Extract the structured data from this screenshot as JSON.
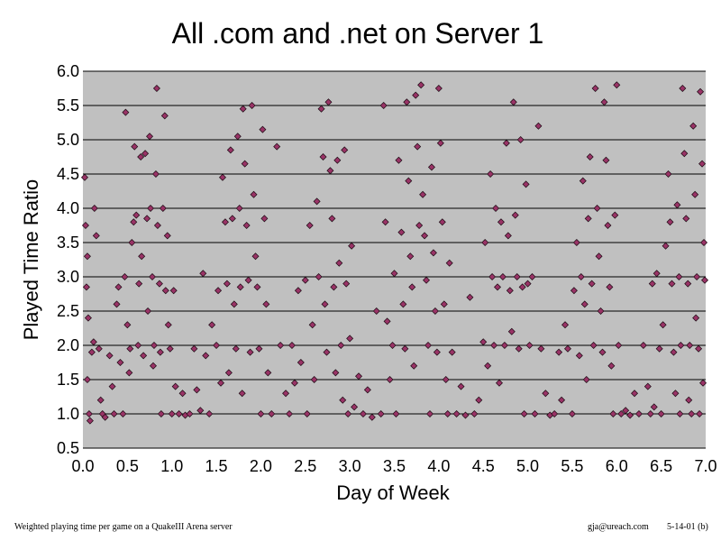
{
  "colors": {
    "plot_background": "#c0c0c0",
    "gridline": "#000000",
    "marker_fill": "#993366",
    "marker_stroke": "#1a0a12"
  },
  "footer": {
    "left": "Weighted playing time per game on a QuakeIII Arena server",
    "email": "gja@ureach.com",
    "date": "5-14-01 (b)"
  },
  "chart_data": {
    "type": "scatter",
    "title": "All .com and .net on Server 1",
    "xlabel": "Day of Week",
    "ylabel": "Played Time Ratio",
    "xlim": [
      0.0,
      7.0
    ],
    "ylim": [
      0.5,
      6.0
    ],
    "x_ticks": [
      "0.0",
      "0.5",
      "1.0",
      "1.5",
      "2.0",
      "2.5",
      "3.0",
      "3.5",
      "4.0",
      "4.5",
      "5.0",
      "5.5",
      "6.0",
      "6.5",
      "7.0"
    ],
    "y_ticks": [
      "0.5",
      "1.0",
      "1.5",
      "2.0",
      "2.5",
      "3.0",
      "3.5",
      "4.0",
      "4.5",
      "5.0",
      "5.5",
      "6.0"
    ],
    "grid": "horizontal",
    "marker": "diamond",
    "points": [
      [
        0.02,
        4.45
      ],
      [
        0.03,
        3.75
      ],
      [
        0.05,
        3.3
      ],
      [
        0.04,
        2.85
      ],
      [
        0.06,
        2.4
      ],
      [
        0.05,
        1.5
      ],
      [
        0.07,
        1.0
      ],
      [
        0.08,
        0.9
      ],
      [
        0.1,
        1.9
      ],
      [
        0.12,
        2.05
      ],
      [
        0.13,
        4.0
      ],
      [
        0.15,
        3.6
      ],
      [
        0.18,
        1.95
      ],
      [
        0.2,
        1.2
      ],
      [
        0.22,
        1.0
      ],
      [
        0.25,
        0.95
      ],
      [
        0.3,
        1.85
      ],
      [
        0.33,
        1.4
      ],
      [
        0.35,
        1.0
      ],
      [
        0.38,
        2.6
      ],
      [
        0.4,
        2.85
      ],
      [
        0.42,
        1.75
      ],
      [
        0.45,
        1.0
      ],
      [
        0.47,
        3.0
      ],
      [
        0.48,
        5.4
      ],
      [
        0.5,
        2.3
      ],
      [
        0.52,
        1.6
      ],
      [
        0.53,
        1.95
      ],
      [
        0.55,
        3.5
      ],
      [
        0.57,
        3.8
      ],
      [
        0.58,
        4.9
      ],
      [
        0.6,
        3.9
      ],
      [
        0.62,
        2.0
      ],
      [
        0.63,
        2.9
      ],
      [
        0.65,
        4.75
      ],
      [
        0.66,
        3.3
      ],
      [
        0.68,
        1.85
      ],
      [
        0.7,
        4.8
      ],
      [
        0.72,
        3.85
      ],
      [
        0.73,
        2.5
      ],
      [
        0.75,
        5.05
      ],
      [
        0.76,
        4.0
      ],
      [
        0.78,
        3.0
      ],
      [
        0.79,
        1.7
      ],
      [
        0.8,
        2.0
      ],
      [
        0.82,
        4.5
      ],
      [
        0.83,
        5.75
      ],
      [
        0.84,
        3.75
      ],
      [
        0.86,
        2.9
      ],
      [
        0.87,
        1.9
      ],
      [
        0.88,
        1.0
      ],
      [
        0.9,
        4.0
      ],
      [
        0.92,
        5.35
      ],
      [
        0.93,
        2.8
      ],
      [
        0.95,
        3.6
      ],
      [
        0.96,
        2.3
      ],
      [
        0.98,
        1.95
      ],
      [
        1.0,
        1.0
      ],
      [
        1.02,
        2.8
      ],
      [
        1.04,
        1.4
      ],
      [
        1.08,
        1.0
      ],
      [
        1.12,
        1.3
      ],
      [
        1.15,
        0.98
      ],
      [
        1.2,
        1.0
      ],
      [
        1.25,
        1.95
      ],
      [
        1.28,
        1.35
      ],
      [
        1.32,
        1.05
      ],
      [
        1.35,
        3.05
      ],
      [
        1.38,
        1.85
      ],
      [
        1.42,
        1.0
      ],
      [
        1.45,
        2.3
      ],
      [
        1.5,
        2.0
      ],
      [
        1.52,
        2.8
      ],
      [
        1.55,
        1.45
      ],
      [
        1.57,
        4.45
      ],
      [
        1.6,
        3.8
      ],
      [
        1.62,
        2.9
      ],
      [
        1.64,
        1.6
      ],
      [
        1.66,
        4.85
      ],
      [
        1.68,
        3.85
      ],
      [
        1.7,
        2.6
      ],
      [
        1.72,
        1.95
      ],
      [
        1.74,
        5.05
      ],
      [
        1.76,
        4.0
      ],
      [
        1.77,
        2.85
      ],
      [
        1.79,
        1.3
      ],
      [
        1.8,
        5.45
      ],
      [
        1.82,
        4.65
      ],
      [
        1.84,
        3.75
      ],
      [
        1.86,
        2.95
      ],
      [
        1.88,
        1.9
      ],
      [
        1.9,
        5.5
      ],
      [
        1.92,
        4.2
      ],
      [
        1.94,
        3.3
      ],
      [
        1.96,
        2.85
      ],
      [
        1.98,
        1.95
      ],
      [
        2.0,
        1.0
      ],
      [
        2.02,
        5.15
      ],
      [
        2.04,
        3.85
      ],
      [
        2.06,
        2.6
      ],
      [
        2.08,
        1.6
      ],
      [
        2.12,
        1.0
      ],
      [
        2.18,
        4.9
      ],
      [
        2.22,
        2.0
      ],
      [
        2.28,
        1.3
      ],
      [
        2.32,
        1.0
      ],
      [
        2.35,
        2.0
      ],
      [
        2.38,
        1.45
      ],
      [
        2.42,
        2.8
      ],
      [
        2.45,
        1.75
      ],
      [
        2.5,
        2.95
      ],
      [
        2.52,
        1.0
      ],
      [
        2.55,
        3.75
      ],
      [
        2.58,
        2.3
      ],
      [
        2.6,
        1.5
      ],
      [
        2.63,
        4.1
      ],
      [
        2.65,
        3.0
      ],
      [
        2.68,
        5.45
      ],
      [
        2.7,
        4.75
      ],
      [
        2.72,
        2.6
      ],
      [
        2.74,
        1.9
      ],
      [
        2.76,
        5.55
      ],
      [
        2.78,
        4.55
      ],
      [
        2.8,
        3.85
      ],
      [
        2.82,
        2.85
      ],
      [
        2.84,
        1.6
      ],
      [
        2.86,
        4.7
      ],
      [
        2.88,
        3.2
      ],
      [
        2.9,
        2.0
      ],
      [
        2.92,
        1.2
      ],
      [
        2.94,
        4.85
      ],
      [
        2.96,
        2.9
      ],
      [
        2.98,
        1.0
      ],
      [
        3.0,
        2.1
      ],
      [
        3.02,
        3.45
      ],
      [
        3.05,
        1.1
      ],
      [
        3.1,
        1.55
      ],
      [
        3.15,
        1.0
      ],
      [
        3.2,
        1.35
      ],
      [
        3.25,
        0.95
      ],
      [
        3.3,
        2.5
      ],
      [
        3.35,
        1.0
      ],
      [
        3.38,
        5.5
      ],
      [
        3.4,
        3.8
      ],
      [
        3.42,
        2.35
      ],
      [
        3.45,
        1.5
      ],
      [
        3.48,
        2.0
      ],
      [
        3.5,
        3.05
      ],
      [
        3.52,
        1.0
      ],
      [
        3.55,
        4.7
      ],
      [
        3.58,
        3.65
      ],
      [
        3.6,
        2.6
      ],
      [
        3.62,
        1.95
      ],
      [
        3.64,
        5.55
      ],
      [
        3.66,
        4.4
      ],
      [
        3.68,
        3.3
      ],
      [
        3.7,
        2.85
      ],
      [
        3.72,
        1.7
      ],
      [
        3.74,
        5.65
      ],
      [
        3.76,
        4.9
      ],
      [
        3.78,
        3.75
      ],
      [
        3.8,
        5.8
      ],
      [
        3.82,
        4.2
      ],
      [
        3.84,
        3.6
      ],
      [
        3.86,
        2.95
      ],
      [
        3.88,
        2.0
      ],
      [
        3.9,
        1.0
      ],
      [
        3.92,
        4.6
      ],
      [
        3.94,
        3.35
      ],
      [
        3.96,
        2.5
      ],
      [
        3.98,
        1.9
      ],
      [
        4.0,
        5.75
      ],
      [
        4.02,
        4.95
      ],
      [
        4.04,
        3.8
      ],
      [
        4.06,
        2.6
      ],
      [
        4.08,
        1.5
      ],
      [
        4.1,
        1.0
      ],
      [
        4.12,
        3.2
      ],
      [
        4.15,
        1.9
      ],
      [
        4.2,
        1.0
      ],
      [
        4.25,
        1.4
      ],
      [
        4.3,
        0.98
      ],
      [
        4.35,
        2.7
      ],
      [
        4.4,
        1.0
      ],
      [
        4.45,
        1.2
      ],
      [
        4.5,
        2.05
      ],
      [
        4.52,
        3.5
      ],
      [
        4.55,
        1.7
      ],
      [
        4.58,
        4.5
      ],
      [
        4.6,
        3.0
      ],
      [
        4.62,
        2.0
      ],
      [
        4.64,
        4.0
      ],
      [
        4.66,
        2.85
      ],
      [
        4.68,
        1.45
      ],
      [
        4.7,
        3.8
      ],
      [
        4.72,
        3.0
      ],
      [
        4.74,
        2.0
      ],
      [
        4.76,
        4.95
      ],
      [
        4.78,
        3.6
      ],
      [
        4.8,
        2.8
      ],
      [
        4.82,
        2.2
      ],
      [
        4.84,
        5.55
      ],
      [
        4.86,
        3.9
      ],
      [
        4.88,
        3.0
      ],
      [
        4.9,
        1.95
      ],
      [
        4.92,
        5.0
      ],
      [
        4.94,
        2.85
      ],
      [
        4.96,
        1.0
      ],
      [
        4.98,
        4.35
      ],
      [
        5.0,
        2.9
      ],
      [
        5.02,
        2.0
      ],
      [
        5.05,
        3.0
      ],
      [
        5.08,
        1.0
      ],
      [
        5.12,
        5.2
      ],
      [
        5.15,
        1.95
      ],
      [
        5.2,
        1.3
      ],
      [
        5.25,
        0.98
      ],
      [
        5.3,
        1.0
      ],
      [
        5.35,
        1.9
      ],
      [
        5.38,
        1.2
      ],
      [
        5.42,
        2.3
      ],
      [
        5.45,
        1.95
      ],
      [
        5.5,
        1.0
      ],
      [
        5.52,
        2.8
      ],
      [
        5.55,
        3.5
      ],
      [
        5.58,
        1.85
      ],
      [
        5.6,
        3.0
      ],
      [
        5.62,
        4.4
      ],
      [
        5.64,
        2.6
      ],
      [
        5.66,
        1.5
      ],
      [
        5.68,
        3.85
      ],
      [
        5.7,
        4.75
      ],
      [
        5.72,
        2.9
      ],
      [
        5.74,
        2.0
      ],
      [
        5.76,
        5.75
      ],
      [
        5.78,
        4.0
      ],
      [
        5.8,
        3.3
      ],
      [
        5.82,
        2.5
      ],
      [
        5.84,
        1.9
      ],
      [
        5.86,
        5.55
      ],
      [
        5.88,
        4.7
      ],
      [
        5.9,
        3.75
      ],
      [
        5.92,
        2.85
      ],
      [
        5.94,
        1.7
      ],
      [
        5.96,
        1.0
      ],
      [
        5.98,
        3.9
      ],
      [
        6.0,
        5.8
      ],
      [
        6.02,
        2.0
      ],
      [
        6.05,
        1.0
      ],
      [
        6.1,
        1.05
      ],
      [
        6.15,
        0.98
      ],
      [
        6.2,
        1.3
      ],
      [
        6.25,
        1.0
      ],
      [
        6.3,
        2.0
      ],
      [
        6.35,
        1.4
      ],
      [
        6.38,
        1.0
      ],
      [
        6.4,
        2.9
      ],
      [
        6.42,
        1.1
      ],
      [
        6.45,
        3.05
      ],
      [
        6.48,
        1.95
      ],
      [
        6.5,
        1.0
      ],
      [
        6.52,
        2.3
      ],
      [
        6.55,
        3.45
      ],
      [
        6.58,
        4.5
      ],
      [
        6.6,
        3.8
      ],
      [
        6.62,
        2.9
      ],
      [
        6.64,
        1.9
      ],
      [
        6.66,
        1.3
      ],
      [
        6.68,
        4.05
      ],
      [
        6.7,
        3.0
      ],
      [
        6.72,
        2.0
      ],
      [
        6.74,
        5.75
      ],
      [
        6.76,
        4.8
      ],
      [
        6.78,
        3.85
      ],
      [
        6.8,
        2.9
      ],
      [
        6.82,
        2.0
      ],
      [
        6.84,
        1.0
      ],
      [
        6.86,
        5.2
      ],
      [
        6.88,
        4.2
      ],
      [
        6.9,
        3.0
      ],
      [
        6.92,
        1.95
      ],
      [
        6.94,
        5.7
      ],
      [
        6.96,
        4.65
      ],
      [
        6.98,
        3.5
      ],
      [
        6.99,
        2.95
      ],
      [
        6.97,
        1.45
      ],
      [
        6.93,
        1.0
      ],
      [
        6.89,
        2.4
      ],
      [
        6.81,
        1.2
      ],
      [
        6.71,
        1.0
      ]
    ]
  }
}
